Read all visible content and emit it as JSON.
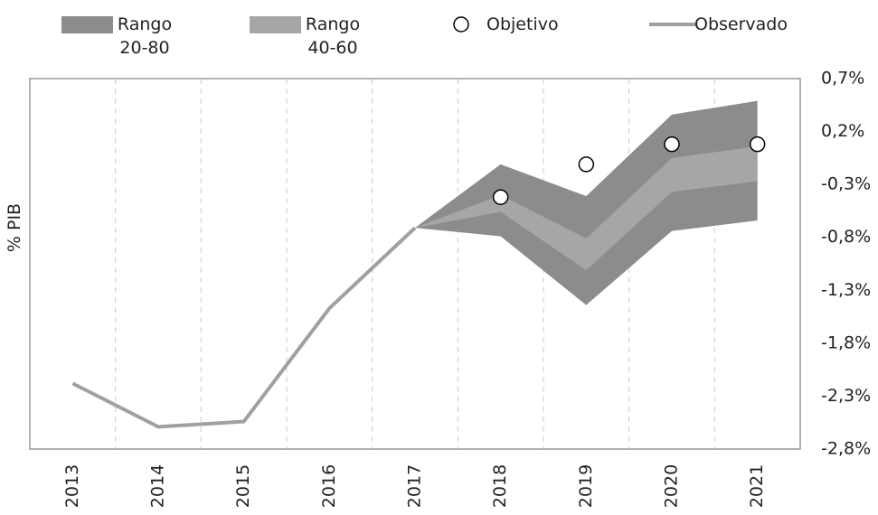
{
  "chart_data": {
    "type": "fan",
    "y_label": "% PIB",
    "categories": [
      "2013",
      "2014",
      "2015",
      "2016",
      "2017",
      "2018",
      "2019",
      "2020",
      "2021"
    ],
    "series": [
      {
        "name": "Rango 20-80",
        "type": "band",
        "color": "#8c8c8c",
        "upper": [
          null,
          null,
          null,
          null,
          -0.71,
          -0.11,
          -0.41,
          0.36,
          0.49
        ],
        "lower": [
          null,
          null,
          null,
          null,
          -0.71,
          -0.79,
          -1.44,
          -0.74,
          -0.64
        ]
      },
      {
        "name": "Rango 40-60",
        "type": "band",
        "color": "#a6a6a6",
        "upper": [
          null,
          null,
          null,
          null,
          -0.71,
          -0.4,
          -0.81,
          -0.05,
          0.06
        ],
        "lower": [
          null,
          null,
          null,
          null,
          -0.71,
          -0.56,
          -1.11,
          -0.37,
          -0.27
        ]
      },
      {
        "name": "Objetivo",
        "type": "scatter",
        "color": "#000000",
        "values": [
          null,
          null,
          null,
          null,
          null,
          -0.42,
          -0.11,
          0.08,
          0.08
        ]
      },
      {
        "name": "Observado",
        "type": "line",
        "color": "#a0a0a0",
        "values": [
          -2.18,
          -2.59,
          -2.54,
          -1.47,
          -0.71,
          null,
          null,
          null,
          null
        ]
      }
    ],
    "ylim": [
      -2.8,
      0.7
    ],
    "yticks": [
      {
        "value": 0.7,
        "label": "0,7%"
      },
      {
        "value": 0.2,
        "label": "0,2%"
      },
      {
        "value": -0.3,
        "label": "-0,3%"
      },
      {
        "value": -0.8,
        "label": "-0,8%"
      },
      {
        "value": -1.3,
        "label": "-1,3%"
      },
      {
        "value": -1.8,
        "label": "-1,8%"
      },
      {
        "value": -2.3,
        "label": "-2,3%"
      },
      {
        "value": -2.8,
        "label": "-2,8%"
      }
    ],
    "grid": true
  }
}
